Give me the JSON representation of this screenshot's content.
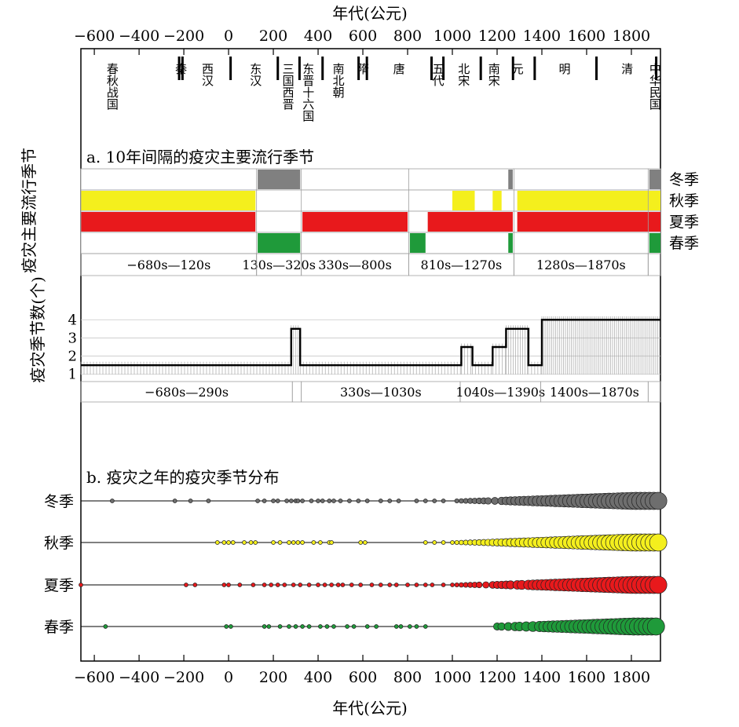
{
  "axis": {
    "xlabel": "年代(公元)",
    "ticks": [
      -600,
      -400,
      -200,
      0,
      200,
      400,
      600,
      800,
      1000,
      1200,
      1400,
      1600,
      1800
    ],
    "tick_labels": [
      "−600",
      "−400",
      "−200",
      "0",
      "200",
      "400",
      "600",
      "800",
      "1000",
      "1200",
      "1400",
      "1600",
      "1800"
    ],
    "xlim": [
      -660,
      1930
    ]
  },
  "dynasties": [
    {
      "name": "春秋战国",
      "year": -520,
      "boundary": -221
    },
    {
      "name": "秦",
      "year": -214,
      "boundary": -206
    },
    {
      "name": "西汉",
      "year": -95,
      "boundary": 9
    },
    {
      "name": "东汉",
      "year": 120,
      "boundary": 220
    },
    {
      "name": "三国西晋",
      "year": 265,
      "boundary": 317
    },
    {
      "name": "东晋十六国",
      "year": 355,
      "boundary": 420
    },
    {
      "name": "南北朝",
      "year": 490,
      "boundary": 581
    },
    {
      "name": "隋",
      "year": 600,
      "boundary": 618
    },
    {
      "name": "唐",
      "year": 760,
      "boundary": 907
    },
    {
      "name": "五代",
      "year": 935,
      "boundary": 960
    },
    {
      "name": "北宋",
      "year": 1050,
      "boundary": 1127
    },
    {
      "name": "南宋",
      "year": 1185,
      "boundary": 1271
    },
    {
      "name": "元",
      "year": 1290,
      "boundary": 1368
    },
    {
      "name": "明",
      "year": 1500,
      "boundary": 1644
    },
    {
      "name": "清",
      "year": 1780,
      "boundary": 1911
    },
    {
      "name": "中华民国",
      "year": 1905,
      "boundary": null
    }
  ],
  "panel_a": {
    "ylabel": "疫灾主要流行季节",
    "title": "a. 10年间隔的疫灾主要流行季节",
    "seasons": [
      {
        "name": "冬季",
        "color": "#808080",
        "spans": [
          [
            130,
            320
          ],
          [
            1250,
            1270
          ],
          [
            1880,
            1930
          ]
        ]
      },
      {
        "name": "秋季",
        "color": "#f4ef1d",
        "spans": [
          [
            -660,
            120
          ],
          [
            1000,
            1100
          ],
          [
            1180,
            1220
          ],
          [
            1290,
            1930
          ]
        ]
      },
      {
        "name": "夏季",
        "color": "#e8191c",
        "spans": [
          [
            -660,
            120
          ],
          [
            330,
            800
          ],
          [
            890,
            1270
          ],
          [
            1290,
            1930
          ]
        ]
      },
      {
        "name": "春季",
        "color": "#1f9a3a",
        "spans": [
          [
            130,
            320
          ],
          [
            810,
            880
          ],
          [
            1250,
            1270
          ],
          [
            1880,
            1930
          ]
        ]
      }
    ],
    "periods": [
      {
        "label": "−680s—120s",
        "start": -660,
        "end": 125
      },
      {
        "label": "130s—320s",
        "start": 125,
        "end": 325
      },
      {
        "label": "330s—800s",
        "start": 325,
        "end": 805
      },
      {
        "label": "810s—1270s",
        "start": 805,
        "end": 1275
      },
      {
        "label": "1280s—1870s",
        "start": 1275,
        "end": 1875
      },
      {
        "label": "",
        "start": 1875,
        "end": 1930
      }
    ]
  },
  "panel_count": {
    "ylabel": "疫灾季节数(个)",
    "yticks": [
      1,
      2,
      3,
      4
    ],
    "ylim": [
      0.6,
      4.4
    ],
    "step_line": [
      [
        -660,
        1.5
      ],
      [
        280,
        1.5
      ],
      [
        280,
        3.5
      ],
      [
        320,
        3.5
      ],
      [
        320,
        1.5
      ],
      [
        1040,
        1.5
      ],
      [
        1040,
        2.5
      ],
      [
        1090,
        2.5
      ],
      [
        1090,
        1.5
      ],
      [
        1180,
        1.5
      ],
      [
        1180,
        2.5
      ],
      [
        1240,
        2.5
      ],
      [
        1240,
        3.5
      ],
      [
        1340,
        3.5
      ],
      [
        1340,
        1.5
      ],
      [
        1400,
        1.5
      ],
      [
        1400,
        4.0
      ],
      [
        1930,
        4.0
      ]
    ],
    "periods": [
      {
        "label": "−680s—290s",
        "start": -660,
        "end": 285
      },
      {
        "label": "",
        "start": 285,
        "end": 325
      },
      {
        "label": "330s—1030s",
        "start": 325,
        "end": 1035
      },
      {
        "label": "1040s—1390s",
        "start": 1035,
        "end": 1395
      },
      {
        "label": "1400s—1870s",
        "start": 1395,
        "end": 1875
      },
      {
        "label": "",
        "start": 1875,
        "end": 1930
      }
    ]
  },
  "panel_b": {
    "title": "b. 疫灾之年的疫灾季节分布",
    "rows": [
      {
        "name": "冬季",
        "color": "#6e6e6e",
        "years": [
          -520,
          -240,
          -170,
          -90,
          130,
          160,
          200,
          220,
          260,
          280,
          300,
          310,
          330,
          370,
          400,
          420,
          450,
          470,
          500,
          540,
          580,
          620,
          680,
          720,
          760,
          840,
          880,
          920,
          960,
          1020,
          1040,
          1060,
          1080,
          1100,
          1120,
          1140,
          1160,
          1190,
          1220,
          1240,
          1260,
          1280,
          1300,
          1320,
          1340,
          1360,
          1380,
          1400,
          1420,
          1440,
          1460,
          1480,
          1500,
          1520,
          1540,
          1560,
          1580,
          1600,
          1620,
          1640,
          1660,
          1680,
          1700,
          1720,
          1740,
          1760,
          1780,
          1800,
          1820,
          1840,
          1860,
          1880,
          1900,
          1920
        ]
      },
      {
        "name": "秋季",
        "color": "#f4ef1d",
        "years": [
          -50,
          -20,
          0,
          20,
          70,
          100,
          120,
          200,
          230,
          270,
          290,
          310,
          330,
          380,
          410,
          450,
          460,
          590,
          610,
          880,
          920,
          960,
          1000,
          1020,
          1040,
          1060,
          1080,
          1100,
          1120,
          1140,
          1160,
          1180,
          1200,
          1220,
          1240,
          1260,
          1280,
          1300,
          1320,
          1340,
          1360,
          1380,
          1400,
          1420,
          1440,
          1460,
          1480,
          1500,
          1520,
          1540,
          1560,
          1580,
          1600,
          1620,
          1640,
          1660,
          1680,
          1700,
          1720,
          1740,
          1760,
          1780,
          1800,
          1820,
          1840,
          1860,
          1880,
          1900,
          1920
        ]
      },
      {
        "name": "夏季",
        "color": "#e8191c",
        "years": [
          -660,
          -190,
          -150,
          -20,
          0,
          50,
          110,
          160,
          190,
          220,
          250,
          290,
          320,
          360,
          400,
          430,
          460,
          490,
          510,
          550,
          590,
          640,
          680,
          720,
          750,
          800,
          840,
          880,
          910,
          960,
          1000,
          1020,
          1040,
          1060,
          1080,
          1100,
          1120,
          1150,
          1180,
          1200,
          1220,
          1240,
          1260,
          1290,
          1310,
          1340,
          1360,
          1380,
          1400,
          1420,
          1440,
          1460,
          1480,
          1500,
          1520,
          1540,
          1560,
          1580,
          1600,
          1620,
          1640,
          1660,
          1680,
          1700,
          1720,
          1740,
          1760,
          1780,
          1800,
          1820,
          1840,
          1860,
          1880,
          1900,
          1920
        ]
      },
      {
        "name": "春季",
        "color": "#1f9a3a",
        "years": [
          -550,
          -10,
          10,
          160,
          180,
          230,
          270,
          300,
          330,
          360,
          410,
          440,
          470,
          530,
          560,
          620,
          660,
          750,
          770,
          810,
          840,
          880,
          1200,
          1220,
          1250,
          1280,
          1300,
          1330,
          1360,
          1390,
          1410,
          1430,
          1450,
          1470,
          1490,
          1510,
          1530,
          1550,
          1570,
          1590,
          1610,
          1630,
          1650,
          1670,
          1690,
          1710,
          1730,
          1750,
          1770,
          1790,
          1810,
          1830,
          1850,
          1870,
          1890,
          1910
        ]
      }
    ]
  }
}
